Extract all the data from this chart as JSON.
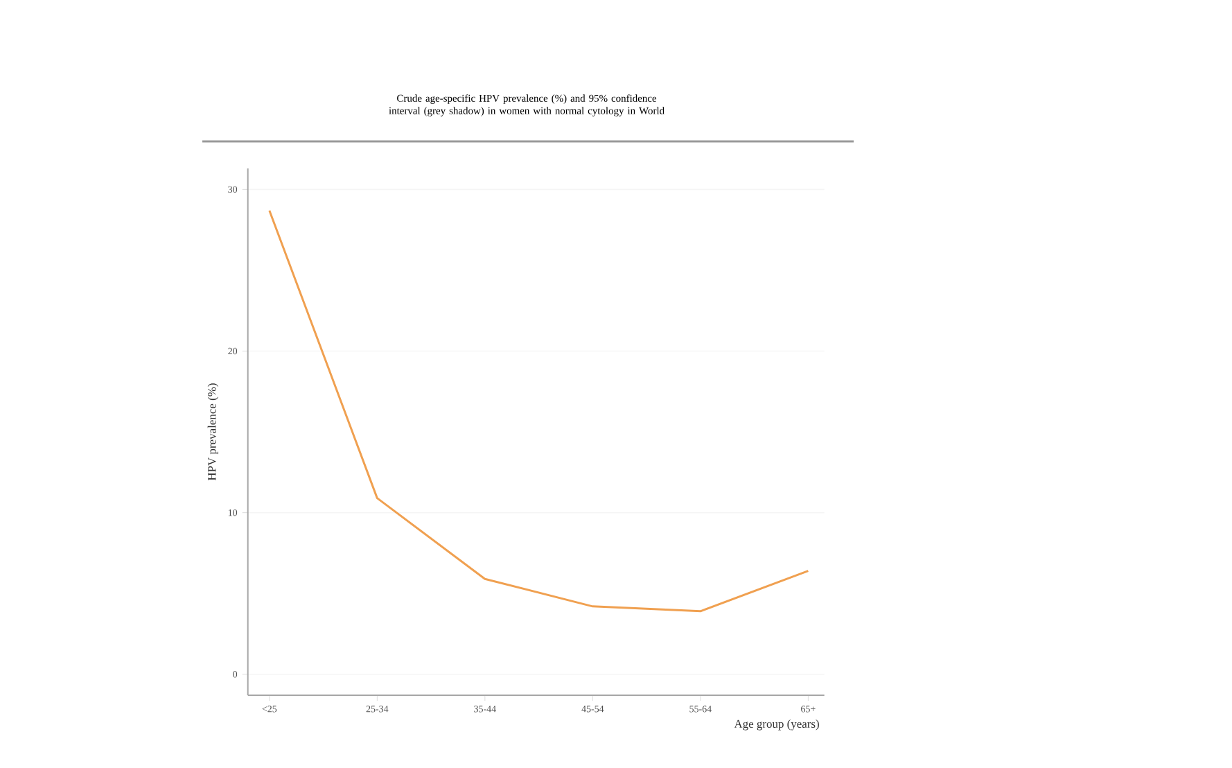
{
  "chart_data": {
    "type": "line",
    "title": "Crude age-specific HPV prevalence (%) and 95% confidence interval (grey shadow) in women with normal cytology in World",
    "xlabel": "Age group (years)",
    "ylabel": "HPV prevalence (%)",
    "categories": [
      "<25",
      "25-34",
      "35-44",
      "45-54",
      "55-64",
      "65+"
    ],
    "series": [
      {
        "color": "#f0a050",
        "values": [
          28.7,
          10.9,
          5.9,
          4.2,
          3.9,
          6.4
        ]
      }
    ],
    "ylim": [
      -1.3,
      31.3
    ],
    "yticks": [
      0,
      10,
      20,
      30
    ],
    "grid": "y",
    "marker": "none",
    "line_style": "solid"
  }
}
